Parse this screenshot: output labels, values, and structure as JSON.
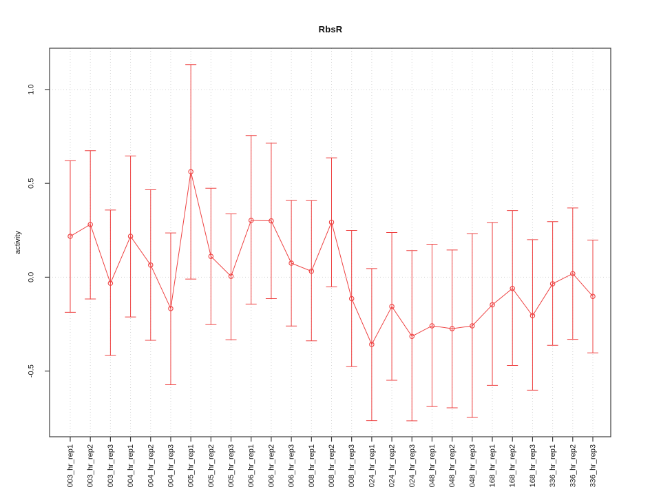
{
  "chart_data": {
    "type": "line",
    "title": "RbsR",
    "xlabel": "",
    "ylabel": "activity",
    "legend": "none",
    "categories": [
      "003_hr_rep1",
      "003_hr_rep2",
      "003_hr_rep3",
      "004_hr_rep1",
      "004_hr_rep2",
      "004_hr_rep3",
      "005_hr_rep1",
      "005_hr_rep2",
      "005_hr_rep3",
      "006_hr_rep1",
      "006_hr_rep2",
      "006_hr_rep3",
      "008_hr_rep1",
      "008_hr_rep2",
      "008_hr_rep3",
      "024_hr_rep1",
      "024_hr_rep2",
      "024_hr_rep3",
      "048_hr_rep1",
      "048_hr_rep2",
      "048_hr_rep3",
      "168_hr_rep1",
      "168_hr_rep2",
      "168_hr_rep3",
      "336_hr_rep1",
      "336_hr_rep2",
      "336_hr_rep3"
    ],
    "series": [
      {
        "name": "activity",
        "marker": "open-circle",
        "values": [
          0.218,
          0.281,
          -0.032,
          0.218,
          0.065,
          -0.167,
          0.562,
          0.111,
          0.005,
          0.303,
          0.3,
          0.075,
          0.032,
          0.293,
          -0.114,
          -0.358,
          -0.156,
          -0.315,
          -0.259,
          -0.274,
          -0.259,
          -0.147,
          -0.06,
          -0.205,
          -0.035,
          0.019,
          -0.102
        ],
        "whisker_high": [
          0.621,
          0.674,
          0.358,
          0.646,
          0.466,
          0.236,
          1.133,
          0.474,
          0.338,
          0.755,
          0.714,
          0.409,
          0.408,
          0.636,
          0.249,
          0.046,
          0.238,
          0.142,
          0.176,
          0.145,
          0.232,
          0.291,
          0.355,
          0.2,
          0.296,
          0.369,
          0.198
        ],
        "whisker_low": [
          -0.187,
          -0.116,
          -0.417,
          -0.212,
          -0.336,
          -0.573,
          -0.01,
          -0.252,
          -0.333,
          -0.143,
          -0.114,
          -0.26,
          -0.339,
          -0.051,
          -0.476,
          -0.764,
          -0.549,
          -0.765,
          -0.689,
          -0.696,
          -0.747,
          -0.576,
          -0.47,
          -0.602,
          -0.363,
          -0.331,
          -0.403
        ]
      }
    ],
    "yticks": [
      -0.5,
      0.0,
      0.5,
      1.0
    ],
    "ytick_labels": [
      "-0.5",
      "0.0",
      "0.5",
      "1.0"
    ],
    "ylim": [
      -0.85,
      1.22
    ],
    "xtick_label_rotation_deg": 90,
    "grid": {
      "vertical_at_each_category": true,
      "horizontal_at": [
        0,
        1
      ],
      "style": "dotted"
    },
    "colors": {
      "series": "#ee4040",
      "grid": "#d4d4d4",
      "axis": "#3c3c3c",
      "text": "#1a1a1a",
      "background": "#ffffff"
    }
  }
}
